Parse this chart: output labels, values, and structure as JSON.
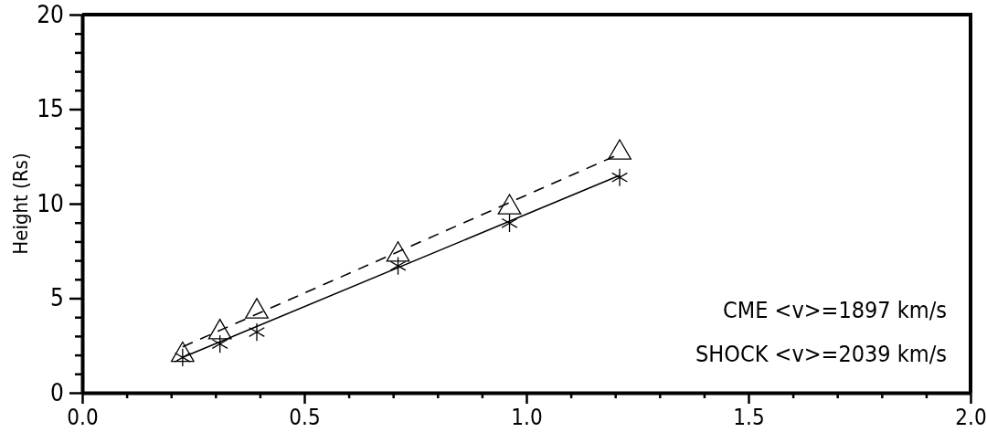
{
  "chart_data": {
    "type": "scatter",
    "ylabel": "Height (Rs)",
    "xlim": [
      0,
      2
    ],
    "ylim": [
      0,
      20
    ],
    "xticks": [
      {
        "value": 0,
        "label": "0.0"
      },
      {
        "value": 0.1,
        "label": null
      },
      {
        "value": 0.2,
        "label": null
      },
      {
        "value": 0.3,
        "label": null
      },
      {
        "value": 0.4,
        "label": null
      },
      {
        "value": 0.5,
        "label": "0.5"
      },
      {
        "value": 0.6,
        "label": null
      },
      {
        "value": 0.7,
        "label": null
      },
      {
        "value": 0.8,
        "label": null
      },
      {
        "value": 0.9,
        "label": null
      },
      {
        "value": 1,
        "label": "1.0"
      },
      {
        "value": 1.1,
        "label": null
      },
      {
        "value": 1.2,
        "label": null
      },
      {
        "value": 1.3,
        "label": null
      },
      {
        "value": 1.4,
        "label": null
      },
      {
        "value": 1.5,
        "label": "1.5"
      },
      {
        "value": 1.6,
        "label": null
      },
      {
        "value": 1.7,
        "label": null
      },
      {
        "value": 1.8,
        "label": null
      },
      {
        "value": 1.9,
        "label": null
      },
      {
        "value": 2,
        "label": "2.0"
      }
    ],
    "yticks": [
      0,
      {
        "value": 1,
        "label": null
      },
      {
        "value": 2,
        "label": null
      },
      {
        "value": 3,
        "label": null
      },
      {
        "value": 4,
        "label": null
      },
      5,
      {
        "value": 6,
        "label": null
      },
      {
        "value": 7,
        "label": null
      },
      {
        "value": 8,
        "label": null
      },
      {
        "value": 9,
        "label": null
      },
      10,
      {
        "value": 11,
        "label": null
      },
      {
        "value": 12,
        "label": null
      },
      {
        "value": 13,
        "label": null
      },
      {
        "value": 14,
        "label": null
      },
      15,
      {
        "value": 16,
        "label": null
      },
      {
        "value": 17,
        "label": null
      },
      {
        "value": 18,
        "label": null
      },
      {
        "value": 19,
        "label": null
      },
      20
    ],
    "grid": false,
    "series": [
      {
        "marker": "cross",
        "color": "#000000",
        "x": [
          0.226,
          0.31,
          0.393,
          0.711,
          0.962,
          1.21
        ],
        "values": [
          1.87,
          2.58,
          3.21,
          6.71,
          8.97,
          11.39
        ]
      },
      {
        "marker": "triangle",
        "color": "#000000",
        "x": [
          0.226,
          0.31,
          0.393,
          0.711,
          0.962,
          1.21
        ],
        "values": [
          2.0,
          3.2,
          4.3,
          7.3,
          9.8,
          12.7
        ]
      },
      {
        "type": "line",
        "marker": "none",
        "line_style": "solid",
        "color": "#000000",
        "x": [
          0.226,
          1.21
        ],
        "values": [
          1.87,
          11.5
        ]
      },
      {
        "type": "line",
        "marker": "none",
        "line_style": "dashed",
        "color": "#000000",
        "x": [
          0.226,
          1.21
        ],
        "values": [
          2.43,
          12.63
        ]
      }
    ],
    "annotations": [
      "CME <v>=1897 km/s",
      "SHOCK <v>=2039 km/s"
    ]
  }
}
